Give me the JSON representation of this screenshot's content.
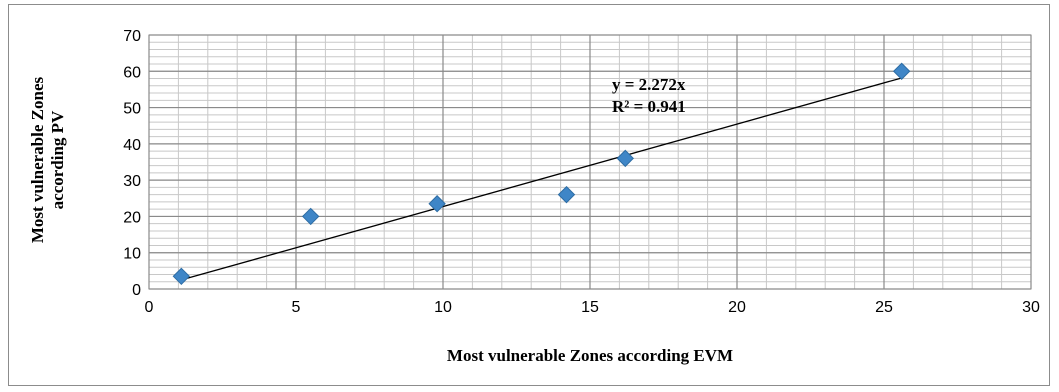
{
  "chart_data": {
    "type": "scatter",
    "title": "",
    "xlabel": "Most vulnerable Zones according EVM",
    "ylabel_lines": [
      "Most vulnerable Zones",
      "according PV"
    ],
    "xlim": [
      0,
      30
    ],
    "ylim": [
      0,
      70
    ],
    "x_major_ticks": [
      0,
      5,
      10,
      15,
      20,
      25,
      30
    ],
    "y_major_ticks": [
      0,
      10,
      20,
      30,
      40,
      50,
      60,
      70
    ],
    "x_minor_step": 1,
    "y_minor_step": 2,
    "grid": true,
    "legend": "none",
    "points": [
      {
        "x": 1.1,
        "y": 3.5
      },
      {
        "x": 5.5,
        "y": 20
      },
      {
        "x": 9.8,
        "y": 23.5
      },
      {
        "x": 14.2,
        "y": 26
      },
      {
        "x": 16.2,
        "y": 36
      },
      {
        "x": 25.6,
        "y": 60
      }
    ],
    "trendline": {
      "type": "linear-through-origin",
      "slope": 2.272,
      "x_range": [
        1.1,
        25.6
      ],
      "equation": "y = 2.272x",
      "r_squared": "R² = 0.941"
    },
    "colors": {
      "marker": "#3f86c7",
      "marker_edge": "#2e6da4",
      "trendline": "#000000",
      "major_grid": "#8a8a8a",
      "minor_grid": "#c8c8c8"
    }
  }
}
